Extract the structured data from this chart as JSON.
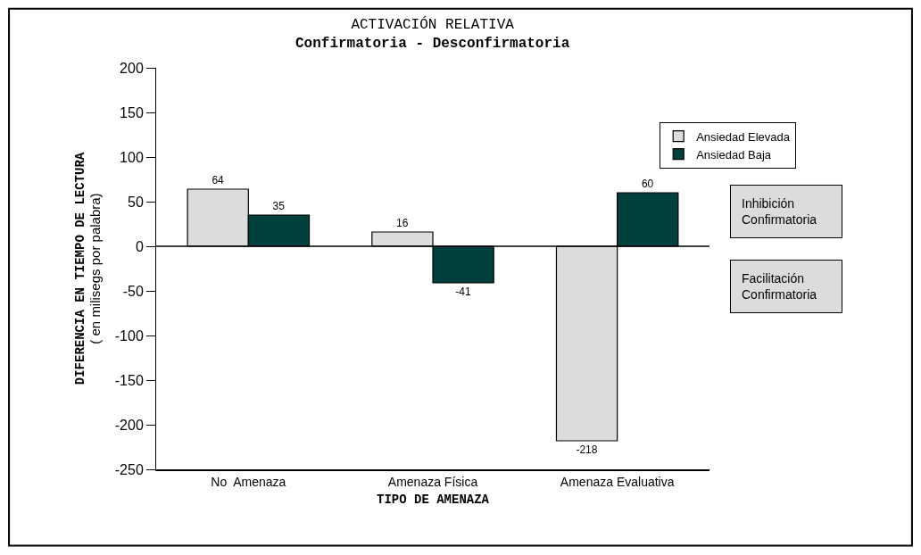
{
  "chart_data": {
    "type": "bar",
    "title": "ACTIVACIÓN RELATIVA",
    "subtitle": "Confirmatoria - Desconfirmatoria",
    "xlabel": "TIPO DE AMENAZA",
    "ylabel": "DIFERENCIA EN TIEMPO DE LECTURA\n( en milisegs por palabra)",
    "categories": [
      "No  Amenaza",
      "Amenaza Física",
      "Amenaza Evaluativa"
    ],
    "series": [
      {
        "name": "Ansiedad Elevada",
        "color": "#dcdcdc",
        "values": [
          64,
          16,
          -218
        ]
      },
      {
        "name": "Ansiedad Baja",
        "color": "#00403d",
        "values": [
          35,
          -41,
          60
        ]
      }
    ],
    "ylim": [
      -250,
      200
    ],
    "yticks": [
      -250,
      -200,
      -150,
      -100,
      -50,
      0,
      50,
      100,
      150,
      200
    ],
    "ref_lines": [
      {
        "axis": "y",
        "value": 0,
        "color": "#000000",
        "line_style": "solid"
      }
    ],
    "legend": "right",
    "data_labels": true,
    "annotations": [
      "Inhibición\nConfirmatoria",
      "Facilitación\nConfirmatoria"
    ]
  }
}
